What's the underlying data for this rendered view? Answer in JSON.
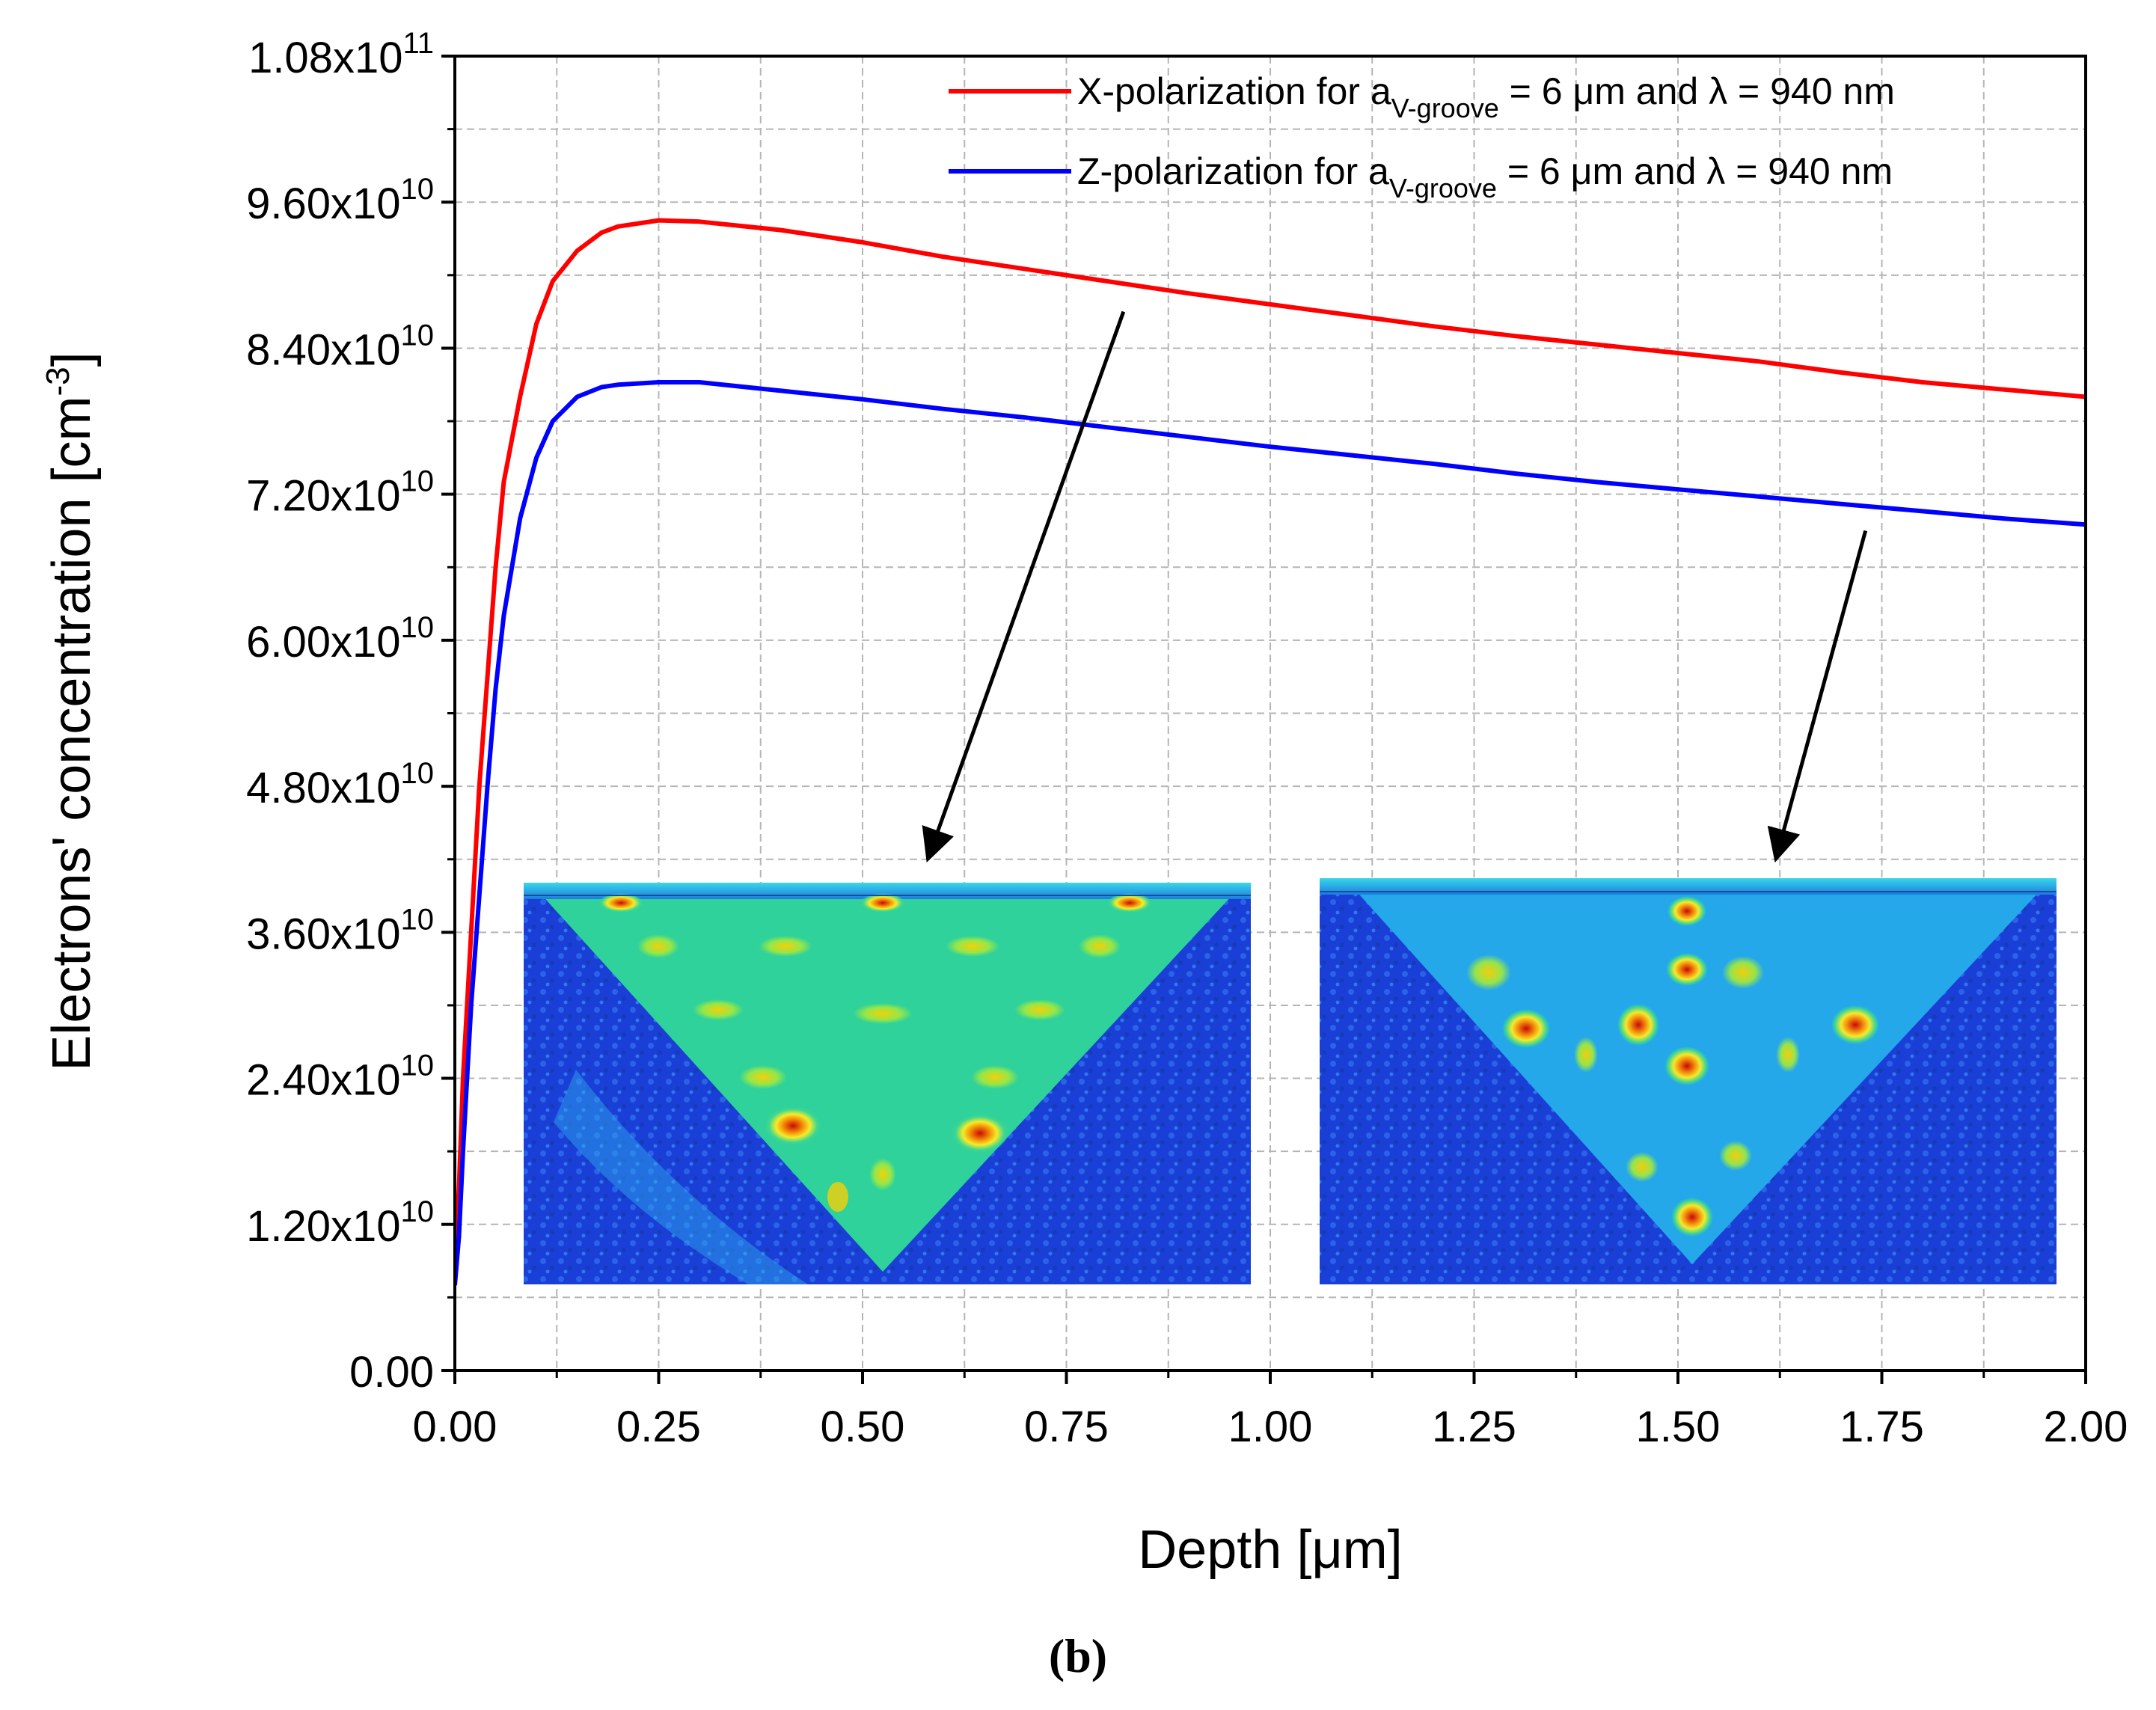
{
  "chart_data": {
    "type": "line",
    "title": "",
    "xlabel": "Depth [μm]",
    "ylabel": "Electrons' concentration [cm",
    "ylabel_sup": "-3",
    "ylabel_suffix": "]",
    "xlim": [
      0,
      2.0
    ],
    "ylim": [
      0,
      108000000000.0
    ],
    "grid": true,
    "legend_position": "top-right",
    "x_ticks": [
      {
        "value": 0.0,
        "label": "0.00"
      },
      {
        "value": 0.25,
        "label": "0.25"
      },
      {
        "value": 0.5,
        "label": "0.50"
      },
      {
        "value": 0.75,
        "label": "0.75"
      },
      {
        "value": 1.0,
        "label": "1.00"
      },
      {
        "value": 1.25,
        "label": "1.25"
      },
      {
        "value": 1.5,
        "label": "1.50"
      },
      {
        "value": 1.75,
        "label": "1.75"
      },
      {
        "value": 2.0,
        "label": "2.00"
      }
    ],
    "y_ticks": [
      {
        "value": 0,
        "mant": "0.00",
        "exp": ""
      },
      {
        "value": 12000000000.0,
        "mant": "1.20x10",
        "exp": "10"
      },
      {
        "value": 24000000000.0,
        "mant": "2.40x10",
        "exp": "10"
      },
      {
        "value": 36000000000.0,
        "mant": "3.60x10",
        "exp": "10"
      },
      {
        "value": 48000000000.0,
        "mant": "4.80x10",
        "exp": "10"
      },
      {
        "value": 60000000000.0,
        "mant": "6.00x10",
        "exp": "10"
      },
      {
        "value": 72000000000.0,
        "mant": "7.20x10",
        "exp": "10"
      },
      {
        "value": 84000000000.0,
        "mant": "8.40x10",
        "exp": "10"
      },
      {
        "value": 96000000000.0,
        "mant": "9.60x10",
        "exp": "10"
      },
      {
        "value": 108000000000.0,
        "mant": "1.08x10",
        "exp": "11"
      }
    ],
    "series": [
      {
        "name": "X-polarization for aV-groove = 6 μm and λ = 940 nm",
        "legend_prefix": "X-polarization for a",
        "legend_sub": "V-groove",
        "legend_suffix": " = 6 μm and λ = 940 nm",
        "color": "#ff0000",
        "x": [
          0.0,
          0.005,
          0.01,
          0.02,
          0.03,
          0.04,
          0.05,
          0.06,
          0.08,
          0.1,
          0.12,
          0.15,
          0.18,
          0.2,
          0.25,
          0.3,
          0.4,
          0.5,
          0.6,
          0.7,
          0.8,
          0.9,
          1.0,
          1.1,
          1.2,
          1.3,
          1.4,
          1.5,
          1.6,
          1.7,
          1.8,
          1.9,
          2.0
        ],
        "values": [
          8000000000.0,
          15000000000.0,
          24000000000.0,
          36000000000.0,
          48000000000.0,
          57000000000.0,
          66000000000.0,
          73000000000.0,
          80000000000.0,
          86000000000.0,
          89500000000.0,
          92000000000.0,
          93500000000.0,
          94000000000.0,
          94500000000.0,
          94400000000.0,
          93700000000.0,
          92700000000.0,
          91500000000.0,
          90500000000.0,
          89500000000.0,
          88500000000.0,
          87600000000.0,
          86700000000.0,
          85800000000.0,
          85000000000.0,
          84300000000.0,
          83600000000.0,
          82900000000.0,
          82000000000.0,
          81200000000.0,
          80600000000.0,
          80000000000.0
        ]
      },
      {
        "name": "Z-polarization for aV-groove = 6 μm and λ = 940 nm",
        "legend_prefix": "Z-polarization for a",
        "legend_sub": "V-groove",
        "legend_suffix": " = 6 μm and λ = 940 nm",
        "color": "#0000ff",
        "x": [
          0.0,
          0.005,
          0.01,
          0.02,
          0.03,
          0.04,
          0.05,
          0.06,
          0.08,
          0.1,
          0.12,
          0.15,
          0.18,
          0.2,
          0.25,
          0.3,
          0.4,
          0.5,
          0.6,
          0.7,
          0.8,
          0.9,
          1.0,
          1.1,
          1.2,
          1.3,
          1.4,
          1.5,
          1.6,
          1.7,
          1.8,
          1.9,
          2.0
        ],
        "values": [
          7000000000.0,
          11000000000.0,
          18000000000.0,
          30000000000.0,
          39000000000.0,
          48000000000.0,
          56000000000.0,
          62000000000.0,
          70000000000.0,
          75000000000.0,
          78000000000.0,
          80000000000.0,
          80800000000.0,
          81000000000.0,
          81200000000.0,
          81200000000.0,
          80500000000.0,
          79800000000.0,
          79000000000.0,
          78300000000.0,
          77500000000.0,
          76700000000.0,
          75900000000.0,
          75200000000.0,
          74500000000.0,
          73700000000.0,
          73000000000.0,
          72400000000.0,
          71800000000.0,
          71200000000.0,
          70600000000.0,
          70000000000.0,
          69500000000.0
        ]
      }
    ],
    "annotations": [
      {
        "type": "arrow",
        "from": [
          0.82,
          87000000000.0
        ],
        "to": [
          0.58,
          42000000000.0
        ],
        "color": "#000000"
      },
      {
        "type": "arrow",
        "from": [
          1.73,
          69000000000.0
        ],
        "to": [
          1.62,
          42000000000.0
        ],
        "color": "#000000"
      }
    ],
    "insets": [
      {
        "name": "x-polarization-field-map",
        "depicts": "V-groove field distribution, X-polarization"
      },
      {
        "name": "z-polarization-field-map",
        "depicts": "V-groove field distribution, Z-polarization"
      }
    ],
    "caption": "(b)"
  },
  "colors": {
    "x_series": "#ff0000",
    "z_series": "#0000ff",
    "field_low": "#1a3fd6",
    "field_mid": "#22c8c0",
    "field_high": "#d80000"
  }
}
